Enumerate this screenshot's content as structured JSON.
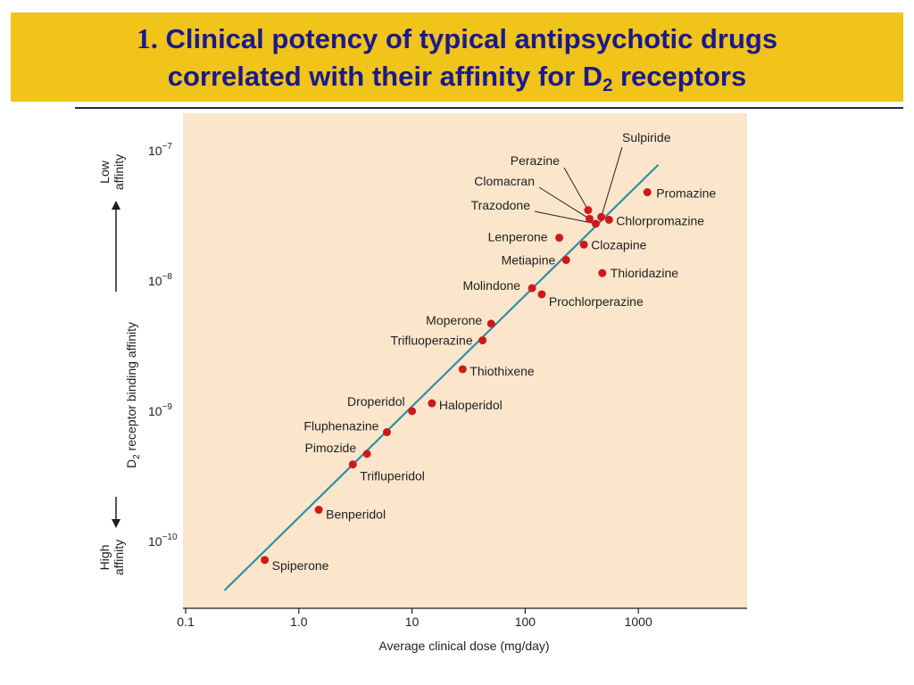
{
  "slide": {
    "number": "1.",
    "title_line1": "Clinical potency of typical antipsychotic drugs",
    "title_line2_main": "correlated with their affinity for D",
    "title_line2_sub": "2",
    "title_line2_end": " receptors"
  },
  "colors": {
    "title_background": "#f0c419",
    "title_text": "#1a1a8c",
    "plot_background": "#fbe6cc",
    "fit_line": "#2f8fa8",
    "points": "#d01818"
  },
  "chart_data": {
    "type": "scatter",
    "title": "",
    "xlabel": "Average clinical dose (mg/day)",
    "x_scale": "log",
    "xlim": [
      0.1,
      1000
    ],
    "xticks": [
      0.1,
      1.0,
      10,
      100,
      1000
    ],
    "xtick_labels": [
      "0.1",
      "1.0",
      "10",
      "100",
      "1000"
    ],
    "ylabel_main": "D",
    "ylabel_sub": "2",
    "ylabel_rest": " receptor binding affinity",
    "y_scale": "log",
    "yticks": [
      1e-07,
      1e-08,
      1e-09,
      1e-10
    ],
    "ytick_labels": [
      {
        "base": "10",
        "exp": "−7"
      },
      {
        "base": "10",
        "exp": "−8"
      },
      {
        "base": "10",
        "exp": "−9"
      },
      {
        "base": "10",
        "exp": "−10"
      }
    ],
    "y_top_label": [
      "Low",
      "affinity"
    ],
    "y_bottom_label": [
      "High",
      "affinity"
    ],
    "grid": false,
    "fit_line": {
      "x": [
        0.22,
        1500
      ],
      "y": [
        4.2e-11,
        7.8e-08
      ]
    },
    "points": [
      {
        "name": "Sulpiride",
        "x": 470,
        "y": 3.1e-08
      },
      {
        "name": "Promazine",
        "x": 1200,
        "y": 4.8e-08
      },
      {
        "name": "Perazine",
        "x": 360,
        "y": 3.5e-08
      },
      {
        "name": "Clomacran",
        "x": 370,
        "y": 3e-08
      },
      {
        "name": "Trazodone",
        "x": 420,
        "y": 2.75e-08
      },
      {
        "name": "Chlorpromazine",
        "x": 550,
        "y": 2.95e-08
      },
      {
        "name": "Lenperone",
        "x": 200,
        "y": 2.15e-08
      },
      {
        "name": "Clozapine",
        "x": 330,
        "y": 1.9e-08
      },
      {
        "name": "Metiapine",
        "x": 230,
        "y": 1.45e-08
      },
      {
        "name": "Thioridazine",
        "x": 480,
        "y": 1.15e-08
      },
      {
        "name": "Molindone",
        "x": 115,
        "y": 8.8e-09
      },
      {
        "name": "Prochlorperazine",
        "x": 140,
        "y": 7.9e-09
      },
      {
        "name": "Moperone",
        "x": 50,
        "y": 4.7e-09
      },
      {
        "name": "Trifluoperazine",
        "x": 42,
        "y": 3.5e-09
      },
      {
        "name": "Thiothixene",
        "x": 28,
        "y": 2.1e-09
      },
      {
        "name": "Droperidol",
        "x": 10,
        "y": 1e-09
      },
      {
        "name": "Haloperidol",
        "x": 15,
        "y": 1.15e-09
      },
      {
        "name": "Fluphenazine",
        "x": 6,
        "y": 6.9e-10
      },
      {
        "name": "Pimozide",
        "x": 4,
        "y": 4.7e-10
      },
      {
        "name": "Trifluperidol",
        "x": 3,
        "y": 3.9e-10
      },
      {
        "name": "Benperidol",
        "x": 1.5,
        "y": 1.75e-10
      },
      {
        "name": "Spiperone",
        "x": 0.5,
        "y": 7.2e-11
      }
    ]
  }
}
